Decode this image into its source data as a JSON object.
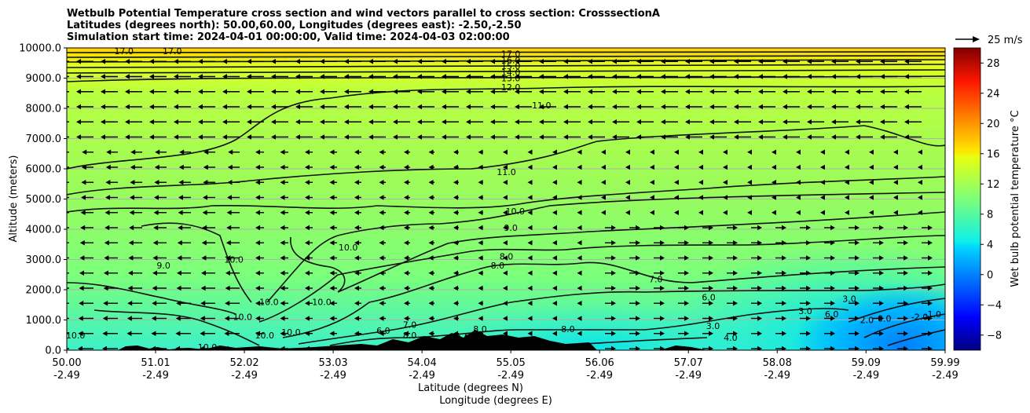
{
  "chart_data": {
    "type": "heatmap",
    "title_lines": [
      "Wetbulb Potential Temperature cross section and wind vectors parallel to cross section: CrosssectionA",
      "Latitudes (degrees north): 50.00,60.00, Longitudes (degrees east): -2.50,-2.50",
      "Simulation start time: 2024-04-01 00:00:00, Valid time: 2024-04-03 02:00:00"
    ],
    "xlabel_lines": [
      "Latitude (degrees N)",
      "Longitude (degrees E)"
    ],
    "ylabel": "Altitude (meters)",
    "x_ticks": [
      {
        "lat": "50.00",
        "lon": "-2.49"
      },
      {
        "lat": "51.01",
        "lon": "-2.49"
      },
      {
        "lat": "52.02",
        "lon": "-2.49"
      },
      {
        "lat": "53.03",
        "lon": "-2.49"
      },
      {
        "lat": "54.04",
        "lon": "-2.49"
      },
      {
        "lat": "55.05",
        "lon": "-2.49"
      },
      {
        "lat": "56.06",
        "lon": "-2.49"
      },
      {
        "lat": "57.07",
        "lon": "-2.49"
      },
      {
        "lat": "58.08",
        "lon": "-2.49"
      },
      {
        "lat": "59.09",
        "lon": "-2.49"
      },
      {
        "lat": "59.99",
        "lon": "-2.49"
      }
    ],
    "xlim": [
      50.0,
      59.99
    ],
    "y_ticks": [
      "0.0",
      "1000.0",
      "2000.0",
      "3000.0",
      "4000.0",
      "5000.0",
      "6000.0",
      "7000.0",
      "8000.0",
      "9000.0",
      "10000.0"
    ],
    "ylim": [
      0,
      10000
    ],
    "colorbar": {
      "label": "Wet bulb potential temperature $^\\circ$C",
      "label_text": "Wet bulb potential temperature °C",
      "ticks": [
        "−8",
        "−4",
        "0",
        "4",
        "8",
        "12",
        "16",
        "20",
        "24",
        "28"
      ],
      "range": [
        -10,
        30
      ],
      "colormap": "jet"
    },
    "quiver_key": {
      "label": "25 m/s"
    },
    "grid": true,
    "contour_labels": [
      {
        "text": "17.0",
        "lat": 50.65,
        "alt": 9900
      },
      {
        "text": "17.0",
        "lat": 51.2,
        "alt": 9900
      },
      {
        "text": "17.0",
        "lat": 55.05,
        "alt": 9800
      },
      {
        "text": "16.0",
        "lat": 55.05,
        "alt": 9600
      },
      {
        "text": "15.0",
        "lat": 55.05,
        "alt": 9400
      },
      {
        "text": "14.0",
        "lat": 55.05,
        "alt": 9200
      },
      {
        "text": "13.0",
        "lat": 55.05,
        "alt": 9000
      },
      {
        "text": "12.0",
        "lat": 55.05,
        "alt": 8700
      },
      {
        "text": "11.0",
        "lat": 55.4,
        "alt": 8100
      },
      {
        "text": "11.0",
        "lat": 55.0,
        "alt": 5900
      },
      {
        "text": "10.0",
        "lat": 55.1,
        "alt": 4600
      },
      {
        "text": "9.0",
        "lat": 55.05,
        "alt": 4050
      },
      {
        "text": "8.0",
        "lat": 54.9,
        "alt": 2800
      },
      {
        "text": "8.0",
        "lat": 55.0,
        "alt": 3100
      },
      {
        "text": "7.0",
        "lat": 56.7,
        "alt": 2350
      },
      {
        "text": "6.0",
        "lat": 57.3,
        "alt": 1750
      },
      {
        "text": "3.0",
        "lat": 58.9,
        "alt": 1700
      },
      {
        "text": "3.0",
        "lat": 58.4,
        "alt": 1300
      },
      {
        "text": "3.0",
        "lat": 57.35,
        "alt": 800
      },
      {
        "text": "4.0",
        "lat": 57.55,
        "alt": 420
      },
      {
        "text": "10.0",
        "lat": 51.9,
        "alt": 3000
      },
      {
        "text": "10.0",
        "lat": 53.2,
        "alt": 3400
      },
      {
        "text": "9.0",
        "lat": 51.1,
        "alt": 2800
      },
      {
        "text": "10.0",
        "lat": 50.1,
        "alt": 500
      },
      {
        "text": "10.0",
        "lat": 52.3,
        "alt": 1600
      },
      {
        "text": "10.0",
        "lat": 52.9,
        "alt": 1600
      },
      {
        "text": "10.0",
        "lat": 52.0,
        "alt": 1100
      },
      {
        "text": "10.0",
        "lat": 52.55,
        "alt": 600
      },
      {
        "text": "10.0",
        "lat": 52.25,
        "alt": 500
      },
      {
        "text": "10.0",
        "lat": 51.6,
        "alt": 100
      },
      {
        "text": "6.0",
        "lat": 54.6,
        "alt": 450
      },
      {
        "text": "8.0",
        "lat": 54.5,
        "alt": 400
      },
      {
        "text": "8.0",
        "lat": 54.7,
        "alt": 700
      },
      {
        "text": "8.0",
        "lat": 55.7,
        "alt": 700
      },
      {
        "text": "7.0",
        "lat": 53.9,
        "alt": 850
      },
      {
        "text": "6.0",
        "lat": 53.6,
        "alt": 650
      },
      {
        "text": "8.0",
        "lat": 53.9,
        "alt": 500
      },
      {
        "text": "6.0",
        "lat": 58.7,
        "alt": 1200
      },
      {
        "text": "0.0",
        "lat": 59.3,
        "alt": 1050
      },
      {
        "text": "-2.0",
        "lat": 59.7,
        "alt": 1100
      },
      {
        "text": "-1.0",
        "lat": 59.85,
        "alt": 1200
      },
      {
        "text": "2.0",
        "lat": 59.1,
        "alt": 1000
      }
    ]
  }
}
